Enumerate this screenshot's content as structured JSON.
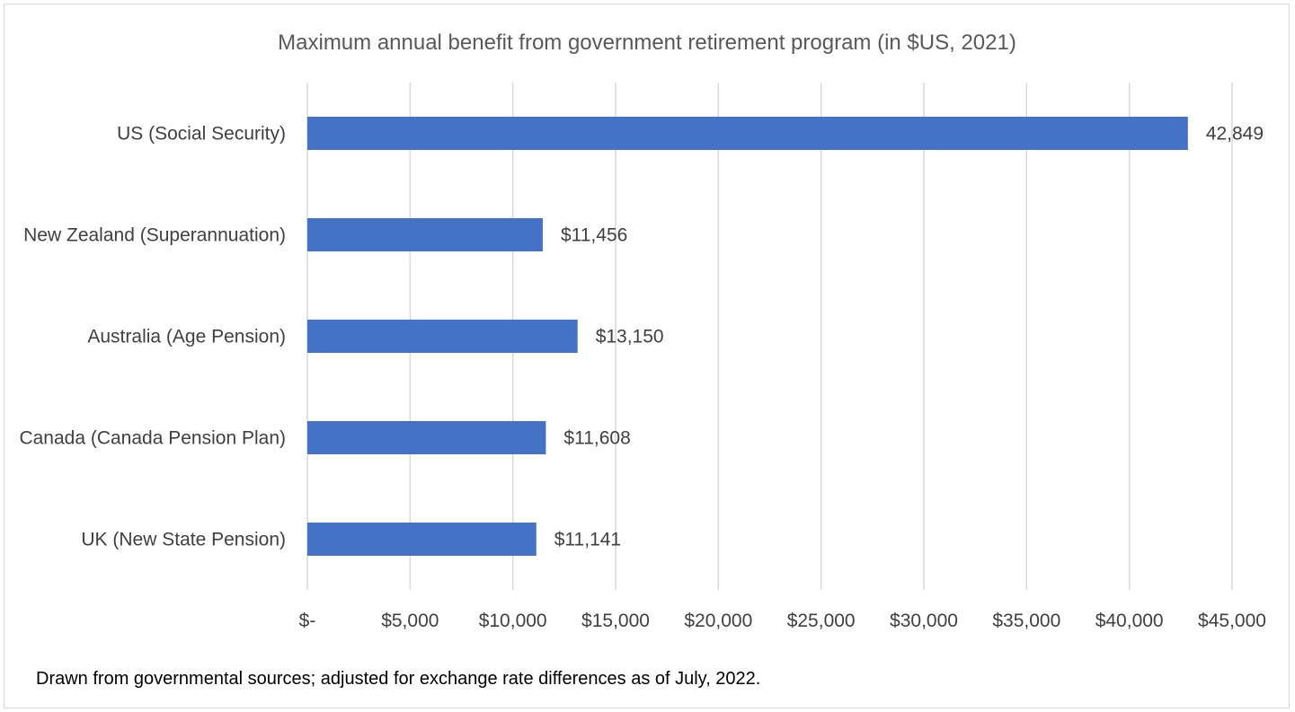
{
  "chart_data": {
    "type": "bar",
    "orientation": "horizontal",
    "title": "Maximum annual benefit from government retirement program (in $US, 2021)",
    "categories": [
      "US (Social Security)",
      "New Zealand (Superannuation)",
      "Australia (Age Pension)",
      "Canada (Canada Pension Plan)",
      "UK (New State Pension)"
    ],
    "values": [
      42849,
      11456,
      13150,
      11608,
      11141
    ],
    "data_labels": [
      "42,849",
      "$11,456",
      "$13,150",
      "$11,608",
      "$11,141"
    ],
    "xlim": [
      0,
      45000
    ],
    "x_ticks": [
      0,
      5000,
      10000,
      15000,
      20000,
      25000,
      30000,
      35000,
      40000,
      45000
    ],
    "x_tick_labels": [
      "$-",
      "$5,000",
      "$10,000",
      "$15,000",
      "$20,000",
      "$25,000",
      "$30,000",
      "$35,000",
      "$40,000",
      "$45,000"
    ],
    "grid": "vertical",
    "legend": "none",
    "bar_color": "#4472c4",
    "grid_color": "#d9d9d9",
    "footnote": "Drawn from governmental sources; adjusted for exchange rate differences as of July, 2022."
  }
}
